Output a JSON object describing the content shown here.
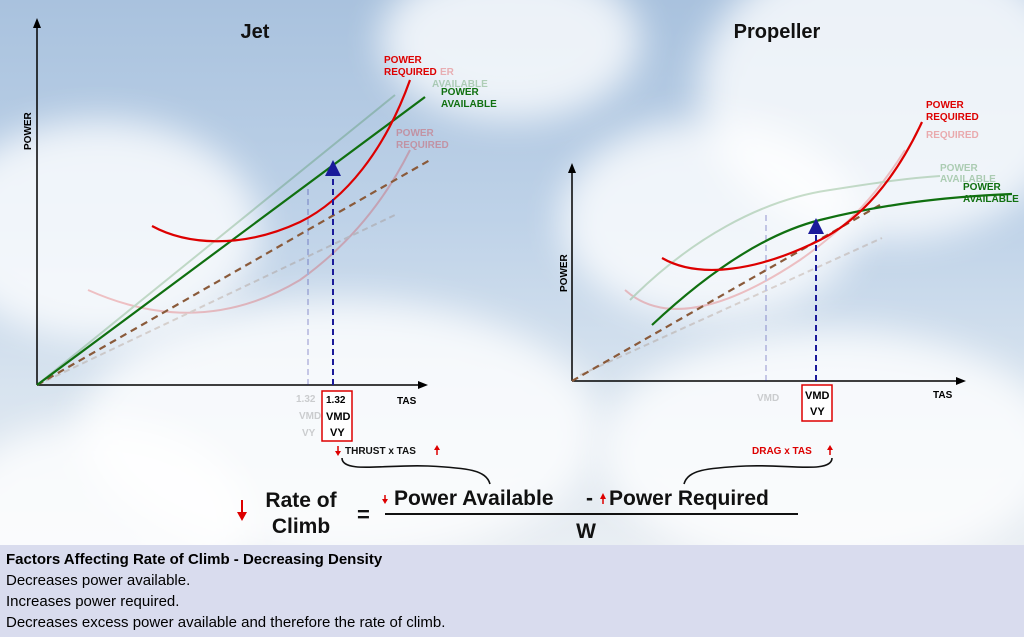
{
  "jet": {
    "title": "Jet",
    "y_axis": "POWER",
    "x_axis": "TAS",
    "power_required": [
      "POWER",
      "REQUIRED"
    ],
    "power_available": [
      "POWER",
      "AVAILABLE"
    ],
    "ghost_required": [
      "POWER",
      "REQUIRED"
    ],
    "ghost_available": [
      "AVAILABLE"
    ],
    "ghost_required_top": "ER",
    "box": [
      "1.32",
      "VMD",
      "VY"
    ],
    "ghost_box": [
      "1.32",
      "VMD",
      "VY"
    ],
    "thrust_label": "THRUST x TAS"
  },
  "prop": {
    "title": "Propeller",
    "y_axis": "POWER",
    "x_axis": "TAS",
    "power_required": [
      "POWER",
      "REQUIRED"
    ],
    "power_available": [
      "POWER",
      "AVAILABLE"
    ],
    "ghost_required": [
      "REQUIRED"
    ],
    "ghost_available": [
      "POWER",
      "AVAILABLE"
    ],
    "box": [
      "VMD",
      "VY"
    ],
    "ghost_box": [
      "VMD"
    ],
    "drag_label": "DRAG x TAS"
  },
  "equation": {
    "lhs": [
      "Rate of",
      "Climb"
    ],
    "equals": "=",
    "numerator_a": "Power Available",
    "minus": "-",
    "numerator_b": "Power Required",
    "denominator": "W"
  },
  "colors": {
    "required": "#dd0000",
    "available": "#107010",
    "dashed": "#8a5a3a",
    "arrow": "#1a1a9a"
  },
  "footer": {
    "heading": "Factors Affecting Rate of Climb - Decreasing Density",
    "lines": [
      "Decreases power available.",
      "Increases power required.",
      "Decreases excess power available and therefore the rate of climb."
    ]
  }
}
